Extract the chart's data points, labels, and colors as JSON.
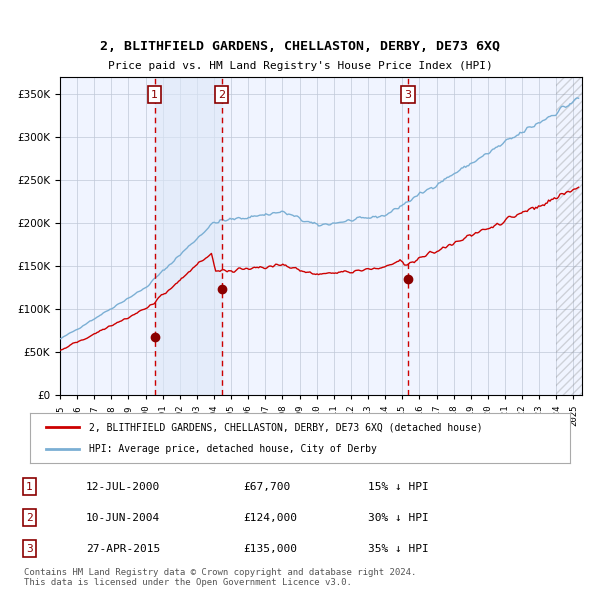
{
  "title": "2, BLITHFIELD GARDENS, CHELLASTON, DERBY, DE73 6XQ",
  "subtitle": "Price paid vs. HM Land Registry's House Price Index (HPI)",
  "xlabel": "",
  "ylabel": "",
  "background_color": "#ffffff",
  "plot_bg_color": "#f0f4ff",
  "grid_color": "#c0c8d8",
  "sale1": {
    "date_num": 2000.53,
    "price": 67700,
    "label": "1"
  },
  "sale2": {
    "date_num": 2004.44,
    "price": 124000,
    "label": "2"
  },
  "sale3": {
    "date_num": 2015.32,
    "price": 135000,
    "label": "3"
  },
  "hpi_color": "#7bafd4",
  "price_color": "#cc0000",
  "marker_color": "#8b0000",
  "shade_color": "#dce8f8",
  "vline_color": "#cc0000",
  "legend_entries": [
    "2, BLITHFIELD GARDENS, CHELLASTON, DERBY, DE73 6XQ (detached house)",
    "HPI: Average price, detached house, City of Derby"
  ],
  "table_rows": [
    [
      "1",
      "12-JUL-2000",
      "£67,700",
      "15% ↓ HPI"
    ],
    [
      "2",
      "10-JUN-2004",
      "£124,000",
      "30% ↓ HPI"
    ],
    [
      "3",
      "27-APR-2015",
      "£135,000",
      "35% ↓ HPI"
    ]
  ],
  "footnote": "Contains HM Land Registry data © Crown copyright and database right 2024.\nThis data is licensed under the Open Government Licence v3.0.",
  "xmin": 1995.0,
  "xmax": 2025.5,
  "ymin": 0,
  "ymax": 370000,
  "yticks": [
    0,
    50000,
    100000,
    150000,
    200000,
    250000,
    300000,
    350000
  ]
}
